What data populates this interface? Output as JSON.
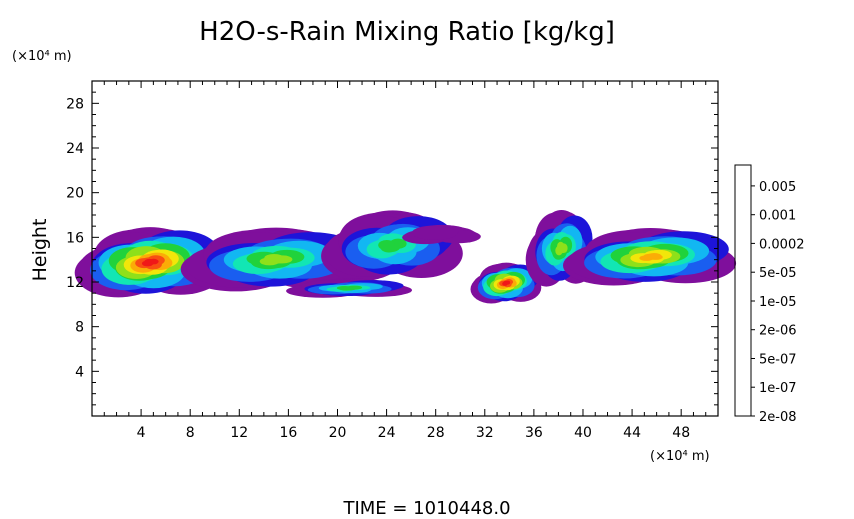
{
  "chart_data": {
    "type": "heatmap",
    "title": "H2O-s-Rain Mixing Ratio [kg/kg]",
    "ylabel": "Height",
    "xlabel": "",
    "x_unit": "(×10⁴ m)",
    "y_unit": "(×10⁴ m)",
    "xlim": [
      0,
      51
    ],
    "ylim": [
      0,
      30
    ],
    "x_ticks": [
      "4",
      "8",
      "12",
      "16",
      "20",
      "24",
      "28",
      "32",
      "36",
      "40",
      "44",
      "48"
    ],
    "y_ticks": [
      "4",
      "8",
      "12",
      "16",
      "20",
      "24",
      "28"
    ],
    "x_tick_values": [
      4,
      8,
      12,
      16,
      20,
      24,
      28,
      32,
      36,
      40,
      44,
      48
    ],
    "y_tick_values": [
      4,
      8,
      12,
      16,
      20,
      24,
      28
    ],
    "colorbar": {
      "labels": [
        "0.005",
        "0.001",
        "0.0002",
        "5e-05",
        "1e-05",
        "2e-06",
        "5e-07",
        "1e-07",
        "2e-08"
      ],
      "colors": [
        "#7f0f9c",
        "#1d14d9",
        "#1a5ef0",
        "#12b7f2",
        "#12e6b4",
        "#20d23c",
        "#8fe01a",
        "#f2e60a",
        "#fbac07",
        "#f84f12",
        "#f01818",
        "#f48aa0"
      ]
    },
    "regions": [
      {
        "name": "cloud-left",
        "x": [
          0,
          9.5
        ],
        "y": [
          11,
          16.5
        ],
        "peak": 10
      },
      {
        "name": "cloud-left-mid",
        "x": [
          9,
          21
        ],
        "y": [
          11.5,
          16.5
        ],
        "peak": 6
      },
      {
        "name": "cloud-center",
        "x": [
          20,
          29
        ],
        "y": [
          12.5,
          18
        ],
        "peak": 5
      },
      {
        "name": "anvil-wisp",
        "x": [
          26,
          31
        ],
        "y": [
          15.5,
          17
        ],
        "peak": 0
      },
      {
        "name": "fragments-low",
        "x": [
          17,
          25
        ],
        "y": [
          10.7,
          12.2
        ],
        "peak": 5
      },
      {
        "name": "cell-center-right",
        "x": [
          31.5,
          36
        ],
        "y": [
          10.3,
          13.5
        ],
        "peak": 10
      },
      {
        "name": "cloud-right-tower",
        "x": [
          36,
          40.5
        ],
        "y": [
          12,
          18
        ],
        "peak": 6
      },
      {
        "name": "cloud-right",
        "x": [
          40,
          51
        ],
        "y": [
          12,
          16.5
        ],
        "peak": 8
      }
    ]
  },
  "time_label": "TIME  =  1010448.0"
}
